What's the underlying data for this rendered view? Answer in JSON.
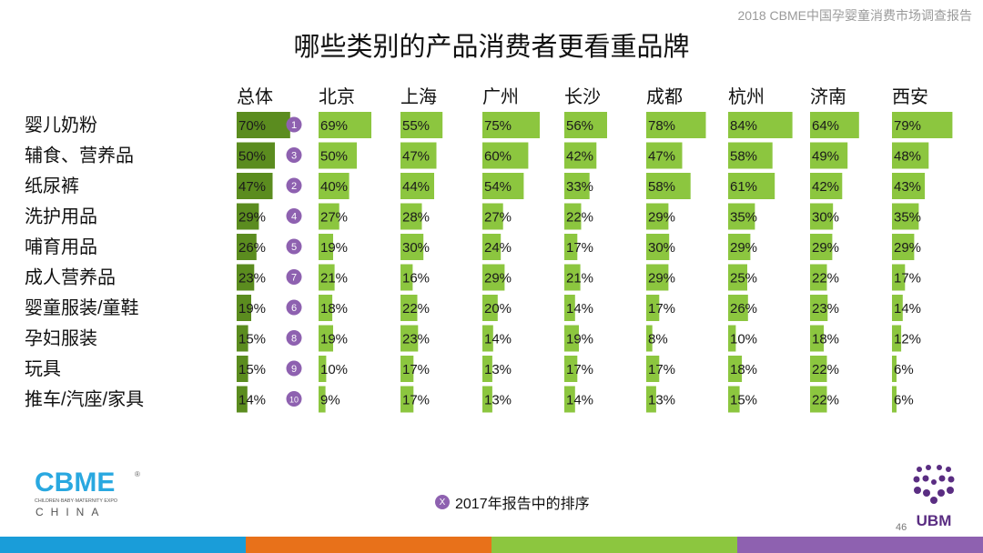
{
  "header": {
    "report_title": "2018 CBME中国孕婴童消费市场调查报告"
  },
  "title": "哪些类别的产品消费者更看重品牌",
  "legend": {
    "badge": "X",
    "text": "2017年报告中的排序"
  },
  "logo_cbme": {
    "word": "CBME",
    "tagline": "CHILDREN·BABY·MATERNITY EXPO",
    "country": "CHINA",
    "reg": "®"
  },
  "logo_ubm": {
    "text": "UBM"
  },
  "page_number": "46",
  "colors": {
    "dark_green": "#5b8c1f",
    "light_green": "#8cc63f",
    "rank_badge": "#8e61b0",
    "footer": [
      "#1a9dd9",
      "#e8711a",
      "#8cc63f",
      "#8e61b0"
    ]
  },
  "chart_data": {
    "type": "table",
    "title": "哪些类别的产品消费者更看重品牌",
    "columns": [
      "总体",
      "北京",
      "上海",
      "广州",
      "长沙",
      "成都",
      "杭州",
      "济南",
      "西安"
    ],
    "rows": [
      {
        "label": "婴儿奶粉",
        "rank2017": "1",
        "values": [
          70,
          69,
          55,
          75,
          56,
          78,
          84,
          64,
          79
        ]
      },
      {
        "label": "辅食、营养品",
        "rank2017": "3",
        "values": [
          50,
          50,
          47,
          60,
          42,
          47,
          58,
          49,
          48
        ]
      },
      {
        "label": "纸尿裤",
        "rank2017": "2",
        "values": [
          47,
          40,
          44,
          54,
          33,
          58,
          61,
          42,
          43
        ]
      },
      {
        "label": "洗护用品",
        "rank2017": "4",
        "values": [
          29,
          27,
          28,
          27,
          22,
          29,
          35,
          30,
          35
        ]
      },
      {
        "label": "哺育用品",
        "rank2017": "5",
        "values": [
          26,
          19,
          30,
          24,
          17,
          30,
          29,
          29,
          29
        ]
      },
      {
        "label": "成人营养品",
        "rank2017": "7",
        "values": [
          23,
          21,
          16,
          29,
          21,
          29,
          25,
          22,
          17
        ]
      },
      {
        "label": "婴童服装/童鞋",
        "rank2017": "6",
        "values": [
          19,
          18,
          22,
          20,
          14,
          17,
          26,
          23,
          14
        ]
      },
      {
        "label": "孕妇服装",
        "rank2017": "8",
        "values": [
          15,
          19,
          23,
          14,
          19,
          8,
          10,
          18,
          12
        ]
      },
      {
        "label": "玩具",
        "rank2017": "9",
        "values": [
          15,
          10,
          17,
          13,
          17,
          17,
          18,
          22,
          6
        ]
      },
      {
        "label": "推车/汽座/家具",
        "rank2017": "10",
        "values": [
          14,
          9,
          17,
          13,
          14,
          13,
          15,
          22,
          6
        ]
      }
    ],
    "value_suffix": "%",
    "value_max": 100
  }
}
